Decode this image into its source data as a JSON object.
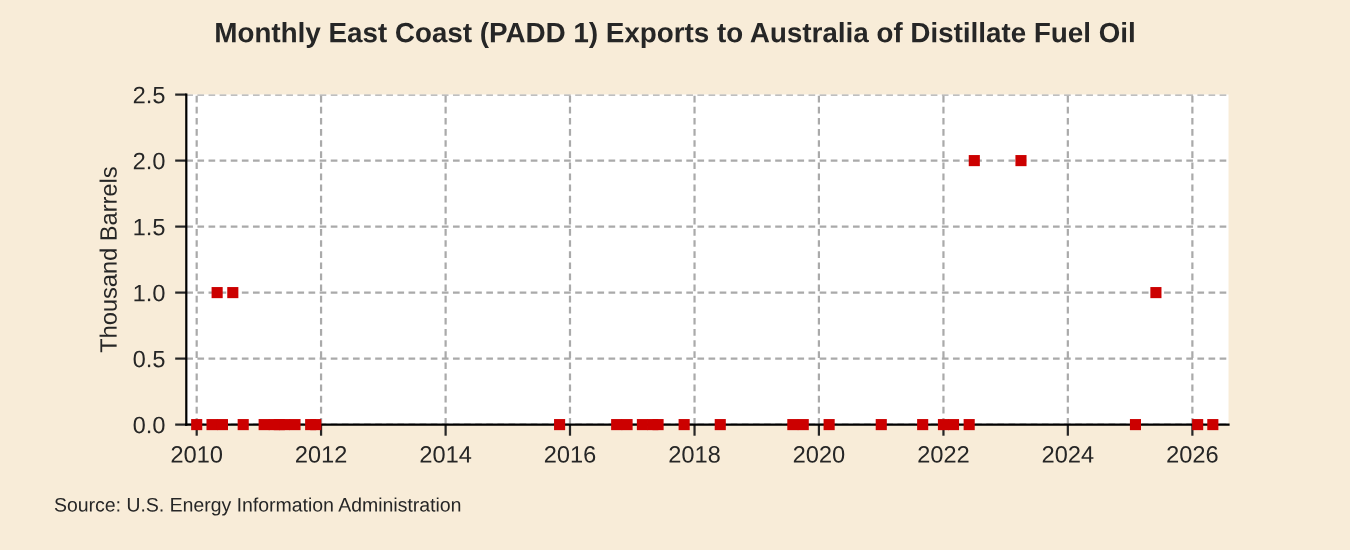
{
  "chart_data": {
    "type": "scatter",
    "title": "Monthly East Coast (PADD 1) Exports to Australia of Distillate Fuel Oil",
    "ylabel": "Thousand Barrels",
    "x": [
      "2010-01",
      "2010-04",
      "2010-05",
      "2010-06",
      "2010-08",
      "2010-10",
      "2011-02",
      "2011-04",
      "2011-05",
      "2011-06",
      "2011-08",
      "2011-11",
      "2011-12",
      "2015-11",
      "2016-10",
      "2016-12",
      "2017-03",
      "2017-05",
      "2017-06",
      "2017-11",
      "2018-06",
      "2019-08",
      "2019-10",
      "2020-03",
      "2021-01",
      "2021-09",
      "2022-01",
      "2022-03",
      "2022-06",
      "2022-07",
      "2023-04",
      "2025-02",
      "2025-06",
      "2026-02",
      "2026-05"
    ],
    "series": [
      {
        "color": "#cc0000",
        "values": [
          0,
          0,
          1,
          0,
          1,
          0,
          0,
          0,
          0,
          0,
          0,
          0,
          0,
          0,
          0,
          0,
          0,
          0,
          0,
          0,
          0,
          0,
          0,
          0,
          0,
          0,
          0,
          0,
          0,
          2,
          2,
          0,
          1,
          0,
          0
        ]
      }
    ],
    "marker": "square",
    "grid": true,
    "xlim": [
      "2009-11",
      "2026-08"
    ],
    "xticks": [
      "2010",
      "2012",
      "2014",
      "2016",
      "2018",
      "2020",
      "2022",
      "2024",
      "2026"
    ],
    "ylim": [
      0,
      2.5
    ],
    "yticks": [
      {
        "value": 0,
        "label": "0.0"
      },
      {
        "value": 0.5,
        "label": "0.5"
      },
      {
        "value": 1,
        "label": "1.0"
      },
      {
        "value": 1.5,
        "label": "1.5"
      },
      {
        "value": 2,
        "label": "2.0"
      },
      {
        "value": 2.5,
        "label": "2.5"
      }
    ],
    "annotations": [
      "Source: U.S. Energy Information Administration"
    ]
  }
}
